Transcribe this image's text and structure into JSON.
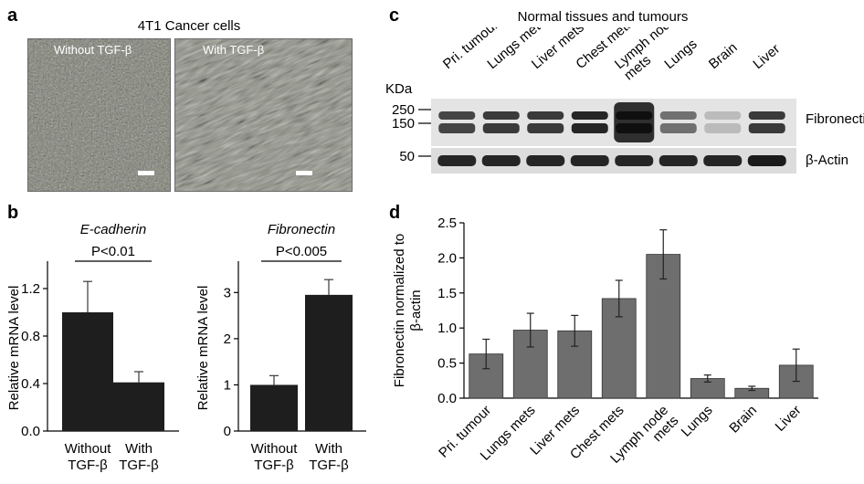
{
  "panel_a": {
    "letter": "a",
    "title": "4T1 Cancer cells",
    "image_labels": [
      "Without TGF-β",
      "With TGF-β"
    ]
  },
  "panel_b": {
    "letter": "b"
  },
  "panel_c": {
    "letter": "c",
    "title": "Normal tissues and tumours",
    "lanes": [
      "Pri. tumour",
      "Lungs mets",
      "Liver mets",
      "Chest mets",
      "Lymph node mets",
      "Lungs",
      "Brain",
      "Liver"
    ],
    "kda_label": "KDa",
    "markers": [
      "250",
      "150",
      "50"
    ],
    "band_labels": [
      "Fibronectin",
      "β-Actin"
    ],
    "fibronectin_intensity": [
      0.75,
      0.8,
      0.8,
      0.9,
      1.0,
      0.55,
      0.2,
      0.8
    ],
    "actin_intensity": [
      0.9,
      0.9,
      0.9,
      0.9,
      0.9,
      0.9,
      0.9,
      0.95
    ]
  },
  "panel_d": {
    "letter": "d"
  },
  "chart_data": [
    {
      "type": "bar",
      "title": "E-cadherin",
      "annotation": "P<0.01",
      "ylabel": "Relative mRNA level",
      "categories": [
        "Without TGF-β",
        "With TGF-β"
      ],
      "values": [
        1.0,
        0.41
      ],
      "errors": [
        0.26,
        0.09
      ],
      "ylim": [
        0,
        1.4
      ],
      "yticks": [
        "0.0",
        "0.4",
        "0.8",
        "1.2"
      ],
      "color": "#1e1e1e"
    },
    {
      "type": "bar",
      "title": "Fibronectin",
      "annotation": "P<0.005",
      "ylabel": "Relative mRNA level",
      "categories": [
        "Without TGF-β",
        "With TGF-β"
      ],
      "values": [
        1.0,
        2.95
      ],
      "errors": [
        0.2,
        0.33
      ],
      "ylim": [
        0,
        3.6
      ],
      "yticks": [
        "0",
        "1",
        "2",
        "3"
      ],
      "color": "#1e1e1e"
    },
    {
      "type": "bar",
      "ylabel": "Fibronectin normalized to β-actin",
      "categories": [
        "Pri. tumour",
        "Lungs mets",
        "Liver mets",
        "Chest mets",
        "Lymph node mets",
        "Lungs",
        "Brain",
        "Liver"
      ],
      "values": [
        0.63,
        0.97,
        0.96,
        1.42,
        2.05,
        0.28,
        0.14,
        0.47
      ],
      "errors": [
        0.21,
        0.24,
        0.22,
        0.26,
        0.35,
        0.05,
        0.03,
        0.23
      ],
      "ylim": [
        0,
        2.5
      ],
      "yticks": [
        "0.0",
        "0.5",
        "1.0",
        "1.5",
        "2.0",
        "2.5"
      ],
      "color": "#6e6e6e"
    }
  ]
}
